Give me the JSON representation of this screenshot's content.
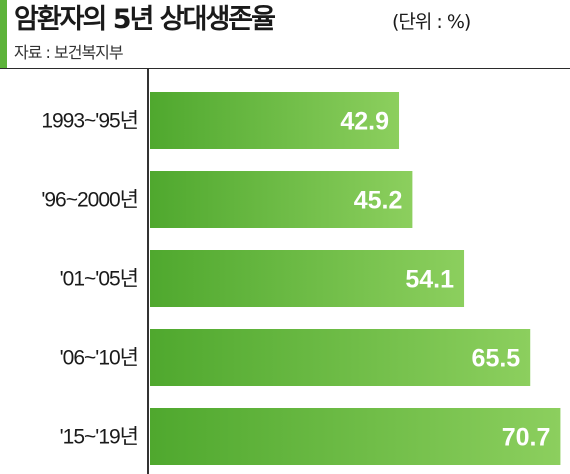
{
  "header": {
    "title": "암환자의 5년 상대생존율",
    "unit": "(단위 : %)",
    "source": "자료 : 보건복지부"
  },
  "colors": {
    "accent": "#5db33a",
    "bar_start": "#4fa82e",
    "bar_end": "#8ccf5e"
  },
  "chart_data": {
    "type": "bar",
    "orientation": "horizontal",
    "categories": [
      "1993~'95년",
      "'96~2000년",
      "'01~'05년",
      "'06~'10년",
      "'15~'19년"
    ],
    "values": [
      42.9,
      45.2,
      54.1,
      65.5,
      70.7
    ],
    "value_labels": [
      "42.9",
      "45.2",
      "54.1",
      "65.5",
      "70.7"
    ],
    "title": "암환자의 5년 상대생존율",
    "unit": "%",
    "xlim": [
      0,
      72
    ],
    "grid": false,
    "legend": "none"
  }
}
